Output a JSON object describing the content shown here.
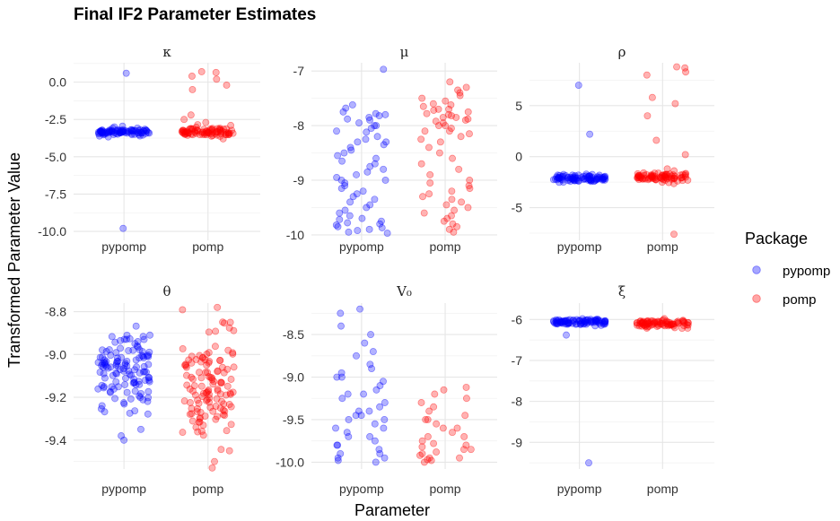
{
  "chart_data": {
    "type": "scatter",
    "title": "Final IF2 Parameter Estimates",
    "xlabel": "Parameter",
    "ylabel": "Transformed Parameter Value",
    "legend": {
      "title": "Package",
      "position": "right",
      "entries": [
        {
          "name": "pypomp",
          "color": "#0000ff"
        },
        {
          "name": "pomp",
          "color": "#ff0000"
        }
      ]
    },
    "categories": [
      "pypomp",
      "pomp"
    ],
    "colors": {
      "pypomp": "#0000ff",
      "pomp": "#ff0000"
    },
    "panels": [
      {
        "label": "κ",
        "ylim": [
          -10.6,
          1.3
        ],
        "yticks": [
          0.0,
          -2.5,
          -5.0,
          -7.5,
          -10.0
        ],
        "yticklabels": [
          "0.0",
          "-2.5",
          "-5.0",
          "-7.5",
          "-10.0"
        ],
        "series": {
          "pypomp": {
            "bulk": {
              "center": -3.35,
              "spread": 0.12,
              "n": 85
            },
            "outliers": [
              0.6,
              -3.0,
              -2.95,
              -3.6,
              -9.8
            ]
          },
          "pomp": {
            "bulk": {
              "center": -3.35,
              "spread": 0.14,
              "n": 80
            },
            "outliers": [
              0.7,
              0.65,
              0.4,
              0.2,
              -0.2,
              -0.5,
              -2.2,
              -2.5,
              -2.7,
              -2.85,
              -2.9,
              -3.8
            ]
          }
        }
      },
      {
        "label": "μ",
        "ylim": [
          -10.1,
          -6.85
        ],
        "yticks": [
          -7,
          -8,
          -9,
          -10
        ],
        "yticklabels": [
          "-7",
          "-8",
          "-9",
          "-10"
        ],
        "series": {
          "pypomp": {
            "points": [
              -6.97,
              -7.62,
              -7.68,
              -7.75,
              -7.78,
              -7.8,
              -7.82,
              -7.85,
              -7.88,
              -7.9,
              -7.95,
              -8.0,
              -8.05,
              -8.1,
              -8.12,
              -8.2,
              -8.25,
              -8.3,
              -8.35,
              -8.4,
              -8.45,
              -8.5,
              -8.55,
              -8.6,
              -8.65,
              -8.7,
              -8.75,
              -8.8,
              -8.85,
              -8.9,
              -8.95,
              -9.0,
              -9.05,
              -9.1,
              -9.15,
              -9.2,
              -9.25,
              -9.3,
              -9.35,
              -9.4,
              -9.45,
              -9.5,
              -9.55,
              -9.6,
              -9.65,
              -9.7,
              -9.72,
              -9.75,
              -9.78,
              -9.8,
              -9.82,
              -9.85,
              -9.87,
              -9.9,
              -9.92,
              -9.95,
              -9.97,
              -8.0,
              -8.3,
              -9.0
            ]
          },
          "pomp": {
            "points": [
              -7.2,
              -7.3,
              -7.35,
              -7.4,
              -7.45,
              -7.5,
              -7.55,
              -7.6,
              -7.62,
              -7.65,
              -7.7,
              -7.72,
              -7.75,
              -7.78,
              -7.8,
              -7.82,
              -7.85,
              -7.88,
              -7.9,
              -7.92,
              -7.95,
              -8.0,
              -8.05,
              -8.1,
              -8.15,
              -8.2,
              -8.3,
              -8.4,
              -8.5,
              -8.6,
              -8.7,
              -8.8,
              -8.9,
              -9.0,
              -9.1,
              -9.2,
              -9.3,
              -9.4,
              -9.5,
              -9.6,
              -9.7,
              -9.8,
              -9.9,
              -7.7,
              -7.85,
              -8.0,
              -8.1,
              -8.25,
              -9.05,
              -9.15,
              -9.25,
              -9.35,
              -9.45,
              -9.55,
              -9.65,
              -9.75,
              -9.85,
              -9.95
            ]
          }
        }
      },
      {
        "label": "ρ",
        "ylim": [
          -8.2,
          9.2
        ],
        "yticks": [
          5,
          0,
          -5
        ],
        "yticklabels": [
          "5",
          "0",
          "-5"
        ],
        "series": {
          "pypomp": {
            "bulk": {
              "center": -2.1,
              "spread": 0.18,
              "n": 85
            },
            "outliers": [
              7.0,
              2.2
            ]
          },
          "pomp": {
            "bulk": {
              "center": -2.0,
              "spread": 0.25,
              "n": 80
            },
            "outliers": [
              8.8,
              8.7,
              8.3,
              8.0,
              5.8,
              5.2,
              4.0,
              1.6,
              0.2,
              -1.2,
              -7.6
            ]
          }
        }
      },
      {
        "label": "θ",
        "ylim": [
          -9.535,
          -8.76
        ],
        "yticks": [
          -8.8,
          -9.0,
          -9.2,
          -9.4
        ],
        "yticklabels": [
          "-8.8",
          "-9.0",
          "-9.2",
          "-9.4"
        ],
        "series": {
          "pypomp": {
            "bulk": {
              "center": -9.08,
              "spread": 0.09,
              "n": 120
            },
            "outliers": [
              -8.91,
              -8.93,
              -9.35,
              -9.38,
              -9.4
            ]
          },
          "pomp": {
            "bulk": {
              "center": -9.17,
              "spread": 0.13,
              "n": 120
            },
            "outliers": [
              -8.78,
              -8.85,
              -9.45,
              -9.5,
              -9.53
            ]
          }
        }
      },
      {
        "label": "V₀",
        "ylim": [
          -10.08,
          -8.13
        ],
        "yticks": [
          -8.5,
          -9.0,
          -9.5,
          -10.0
        ],
        "yticklabels": [
          "-8.5",
          "-9.0",
          "-9.5",
          "-10.0"
        ],
        "series": {
          "pypomp": {
            "points": [
              -8.2,
              -8.25,
              -8.4,
              -8.5,
              -8.6,
              -8.7,
              -8.75,
              -8.85,
              -8.9,
              -8.95,
              -9.0,
              -9.05,
              -9.1,
              -9.15,
              -9.2,
              -9.25,
              -9.3,
              -9.35,
              -9.4,
              -9.45,
              -9.5,
              -9.55,
              -9.6,
              -9.65,
              -9.7,
              -9.75,
              -9.8,
              -9.85,
              -9.9,
              -9.95,
              -9.98,
              -10.0,
              -9.4,
              -9.5,
              -9.6,
              -9.7,
              -9.8,
              -9.9,
              -9.95,
              -9.0,
              -9.2,
              -9.45
            ]
          },
          "pomp": {
            "points": [
              -9.12,
              -9.15,
              -9.2,
              -9.25,
              -9.3,
              -9.35,
              -9.4,
              -9.45,
              -9.5,
              -9.55,
              -9.6,
              -9.65,
              -9.7,
              -9.75,
              -9.8,
              -9.82,
              -9.85,
              -9.88,
              -9.9,
              -9.92,
              -9.95,
              -9.97,
              -10.0,
              -9.5,
              -9.7,
              -9.85,
              -9.95,
              -9.98,
              -9.6,
              -9.78
            ]
          }
        }
      },
      {
        "label": "ξ",
        "ylim": [
          -9.65,
          -5.6
        ],
        "yticks": [
          -6,
          -7,
          -8,
          -9
        ],
        "yticklabels": [
          "-6",
          "-7",
          "-8",
          "-9"
        ],
        "series": {
          "pypomp": {
            "bulk": {
              "center": -6.06,
              "spread": 0.04,
              "n": 85
            },
            "outliers": [
              -6.38,
              -9.5
            ]
          },
          "pomp": {
            "bulk": {
              "center": -6.1,
              "spread": 0.05,
              "n": 80
            },
            "outliers": [
              -5.98,
              -6.2
            ]
          }
        }
      }
    ]
  }
}
